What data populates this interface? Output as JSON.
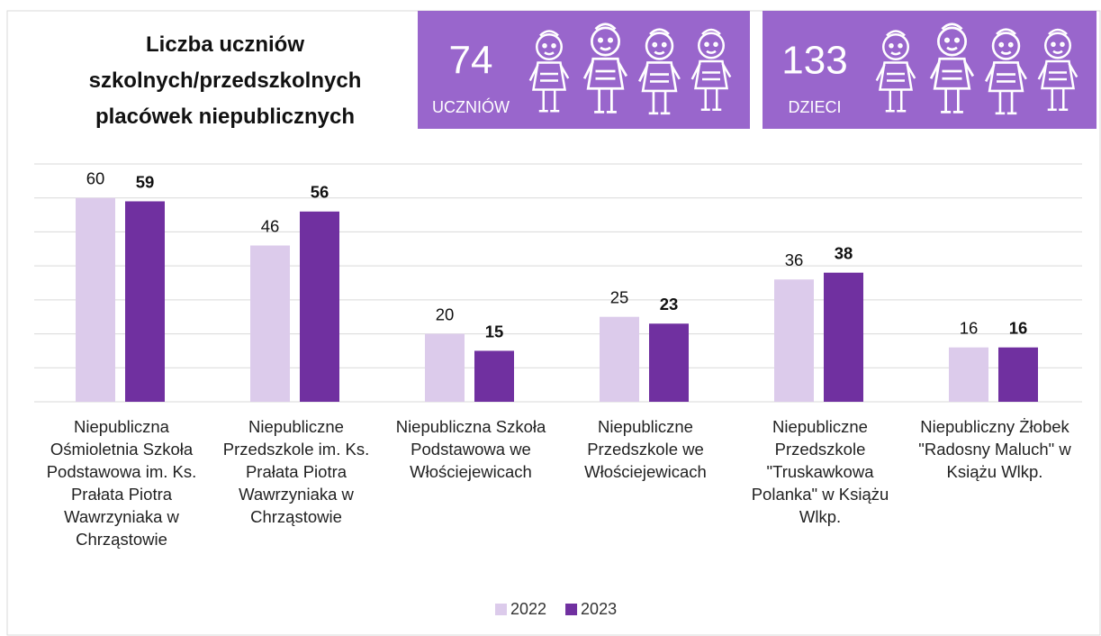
{
  "chart_data": {
    "type": "bar",
    "title": "Liczba uczniów szkolnych/przedszkolnych placówek niepublicznych",
    "categories": [
      "Niepubliczna Ośmioletnia Szkoła Podstawowa im. Ks. Prałata Piotra Wawrzyniaka w Chrząstowie",
      "Niepubliczne Przedszkole  im. Ks. Prałata Piotra Wawrzyniaka w Chrząstowie",
      "Niepubliczna Szkoła Podstawowa we Włościejewicach",
      "Niepubliczne Przedszkole we Włościejewicach",
      "Niepubliczne Przedszkole \"Truskawkowa Polanka\" w Książu Wlkp.",
      "Niepubliczny Żłobek \"Radosny Maluch\" w Książu Wlkp."
    ],
    "series": [
      {
        "name": "2022",
        "color": "#dccbeb",
        "values": [
          60,
          46,
          20,
          25,
          36,
          16
        ]
      },
      {
        "name": "2023",
        "color": "#7030a0",
        "values": [
          59,
          56,
          15,
          23,
          38,
          16
        ]
      }
    ],
    "ylim": [
      0,
      70
    ],
    "yticks": [
      0,
      10,
      20,
      30,
      40,
      50,
      60,
      70
    ],
    "grid": true,
    "legend": "bottom"
  },
  "badges": [
    {
      "number": 74,
      "label": "UCZNIÓW"
    },
    {
      "number": 133,
      "label": "DZIECI"
    }
  ]
}
